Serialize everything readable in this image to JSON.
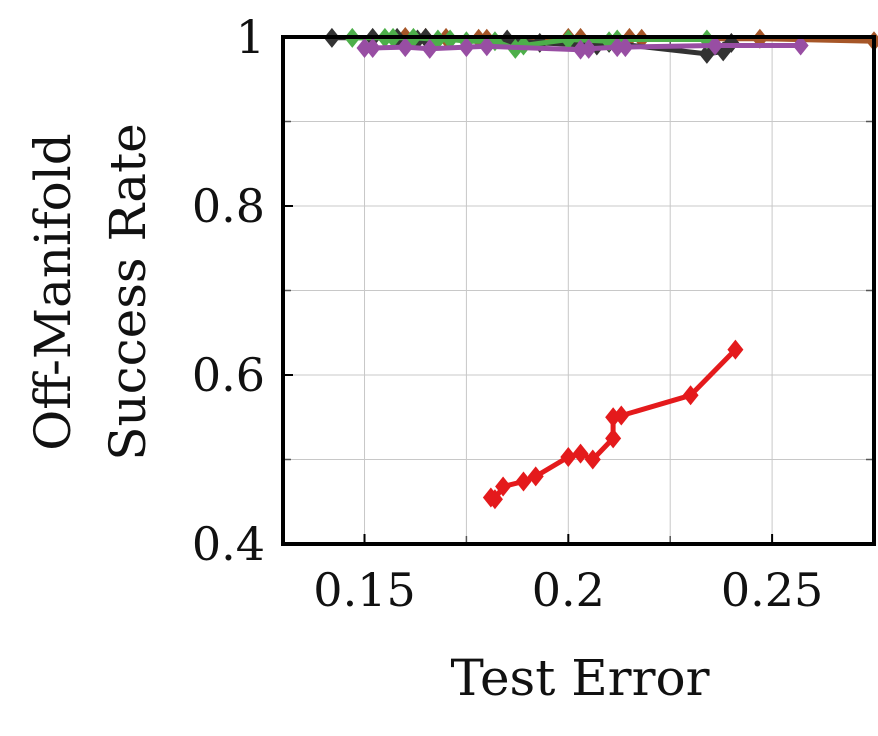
{
  "chart_data": {
    "type": "line",
    "xlabel": "Test Error",
    "ylabel": [
      "Off-Manifold",
      "Success Rate"
    ],
    "xlim": [
      0.13,
      0.275
    ],
    "ylim": [
      0.4,
      1.0
    ],
    "x_ticks": [
      {
        "value": 0.15,
        "label": "0.15"
      },
      {
        "value": 0.2,
        "label": "0.2"
      },
      {
        "value": 0.25,
        "label": "0.25"
      }
    ],
    "y_ticks": [
      {
        "value": 0.4,
        "label": "0.4"
      },
      {
        "value": 0.6,
        "label": "0.6"
      },
      {
        "value": 0.8,
        "label": "0.8"
      },
      {
        "value": 1.0,
        "label": "1"
      }
    ],
    "grid": true,
    "series": [
      {
        "color": "#e41a1c",
        "marker": "diamond",
        "points": [
          [
            0.181,
            0.455
          ],
          [
            0.182,
            0.453
          ],
          [
            0.184,
            0.468
          ],
          [
            0.189,
            0.474
          ],
          [
            0.192,
            0.48
          ],
          [
            0.2,
            0.503
          ],
          [
            0.203,
            0.507
          ],
          [
            0.206,
            0.5
          ],
          [
            0.211,
            0.525
          ],
          [
            0.211,
            0.55
          ],
          [
            0.213,
            0.552
          ],
          [
            0.23,
            0.576
          ],
          [
            0.241,
            0.63
          ]
        ]
      },
      {
        "color": "#a65628",
        "marker": "diamond",
        "points": [
          [
            0.16,
            1.0
          ],
          [
            0.165,
            0.999
          ],
          [
            0.17,
            0.999
          ],
          [
            0.178,
            0.998
          ],
          [
            0.18,
            0.998
          ],
          [
            0.2,
            0.999
          ],
          [
            0.203,
            0.999
          ],
          [
            0.215,
            0.999
          ],
          [
            0.218,
            0.998
          ],
          [
            0.247,
            0.998
          ],
          [
            0.275,
            0.995
          ]
        ]
      },
      {
        "color": "#333333",
        "marker": "diamond",
        "points": [
          [
            0.142,
            0.999
          ],
          [
            0.152,
            0.999
          ],
          [
            0.158,
            0.999
          ],
          [
            0.163,
            0.997
          ],
          [
            0.165,
            0.999
          ],
          [
            0.185,
            0.997
          ],
          [
            0.193,
            0.993
          ],
          [
            0.207,
            0.99
          ],
          [
            0.21,
            0.993
          ],
          [
            0.234,
            0.98
          ],
          [
            0.238,
            0.983
          ],
          [
            0.24,
            0.993
          ]
        ]
      },
      {
        "color": "#4daf4a",
        "marker": "diamond",
        "points": [
          [
            0.147,
            0.999
          ],
          [
            0.155,
            0.999
          ],
          [
            0.157,
            0.999
          ],
          [
            0.162,
            0.999
          ],
          [
            0.168,
            0.997
          ],
          [
            0.171,
            0.997
          ],
          [
            0.175,
            0.995
          ],
          [
            0.182,
            0.995
          ],
          [
            0.187,
            0.986
          ],
          [
            0.189,
            0.99
          ],
          [
            0.2,
            0.997
          ],
          [
            0.21,
            0.995
          ],
          [
            0.212,
            0.997
          ],
          [
            0.234,
            0.997
          ]
        ]
      },
      {
        "color": "#984ea3",
        "marker": "diamond",
        "points": [
          [
            0.15,
            0.987
          ],
          [
            0.152,
            0.987
          ],
          [
            0.16,
            0.988
          ],
          [
            0.166,
            0.986
          ],
          [
            0.175,
            0.988
          ],
          [
            0.18,
            0.989
          ],
          [
            0.203,
            0.985
          ],
          [
            0.205,
            0.986
          ],
          [
            0.212,
            0.988
          ],
          [
            0.214,
            0.988
          ],
          [
            0.236,
            0.99
          ],
          [
            0.257,
            0.99
          ]
        ]
      }
    ]
  }
}
